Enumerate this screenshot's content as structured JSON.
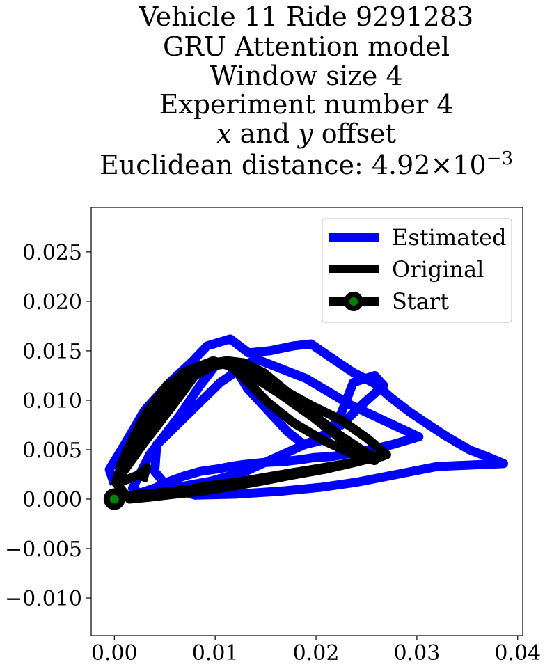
{
  "chart_data": {
    "type": "line",
    "title_lines": [
      "Vehicle 11 Ride 9291283",
      "GRU Attention model",
      "Window size 4",
      "Experiment number 4"
    ],
    "title_offset_var_x": "x",
    "title_offset_and": " and ",
    "title_offset_var_y": "y",
    "title_offset_rest": " offset",
    "title_distance_prefix": "Euclidean distance: 4.92×10",
    "title_distance_exponent": "−3",
    "xlim": [
      -0.0023,
      0.0405
    ],
    "ylim": [
      -0.0138,
      0.0295
    ],
    "xticks": [
      {
        "value": 0.0,
        "label": "0.00"
      },
      {
        "value": 0.01,
        "label": "0.01"
      },
      {
        "value": 0.02,
        "label": "0.02"
      },
      {
        "value": 0.03,
        "label": "0.03"
      },
      {
        "value": 0.04,
        "label": "0.04"
      }
    ],
    "yticks": [
      {
        "value": -0.01,
        "label": "−0.010"
      },
      {
        "value": -0.005,
        "label": "−0.005"
      },
      {
        "value": 0.0,
        "label": "0.000"
      },
      {
        "value": 0.005,
        "label": "0.005"
      },
      {
        "value": 0.01,
        "label": "0.010"
      },
      {
        "value": 0.015,
        "label": "0.015"
      },
      {
        "value": 0.02,
        "label": "0.020"
      },
      {
        "value": 0.025,
        "label": "0.025"
      }
    ],
    "grid": false,
    "legend_position": "top-right",
    "series": [
      {
        "name": "Estimated",
        "color": "#0000ff",
        "x": [
          0.0,
          -0.0005,
          0.001,
          0.003,
          0.0055,
          0.0078,
          0.0092,
          0.0115,
          0.0133,
          0.0154,
          0.0178,
          0.0195,
          0.0215,
          0.0237,
          0.0258,
          0.0275,
          0.0293,
          0.0312,
          0.033,
          0.0352,
          0.0372,
          0.0386,
          0.0365,
          0.032,
          0.028,
          0.024,
          0.0205,
          0.0165,
          0.012,
          0.008,
          0.0053,
          0.004,
          0.0042,
          0.0075,
          0.0105,
          0.014,
          0.019,
          0.0235,
          0.0283,
          0.0302,
          0.0275,
          0.0245,
          0.0215,
          0.0198,
          0.0185,
          0.0168,
          0.0148,
          0.0128,
          0.0115,
          0.0105,
          0.0085,
          0.0068,
          0.0052,
          0.0042,
          0.0025,
          0.0018,
          0.0035,
          0.0065,
          0.0085,
          0.0095,
          0.01,
          0.0112,
          0.012,
          0.0132,
          0.0152,
          0.0172,
          0.0188,
          0.0208,
          0.0225,
          0.0237,
          0.0258,
          0.0267,
          0.0245,
          0.0225,
          0.0195,
          0.016,
          0.013,
          0.0095,
          0.0068,
          0.0045,
          0.0025
        ],
        "y": [
          0.0015,
          0.003,
          0.0055,
          0.009,
          0.0118,
          0.014,
          0.0155,
          0.0162,
          0.0148,
          0.015,
          0.0155,
          0.0157,
          0.0143,
          0.0128,
          0.0117,
          0.0102,
          0.0088,
          0.0075,
          0.0063,
          0.005,
          0.0042,
          0.0036,
          0.0035,
          0.0033,
          0.0025,
          0.0017,
          0.0012,
          0.0008,
          0.0005,
          0.0004,
          0.0012,
          0.0028,
          0.0055,
          0.0088,
          0.0118,
          0.0142,
          0.0122,
          0.0095,
          0.0072,
          0.0063,
          0.0055,
          0.0048,
          0.0043,
          0.0042,
          0.004,
          0.0038,
          0.0037,
          0.0035,
          0.0033,
          0.0031,
          0.0028,
          0.0023,
          0.0017,
          0.0012,
          0.0006,
          0.0011,
          0.0045,
          0.0085,
          0.0115,
          0.0128,
          0.0135,
          0.014,
          0.0132,
          0.0112,
          0.009,
          0.0068,
          0.0055,
          0.006,
          0.0087,
          0.0118,
          0.0125,
          0.0115,
          0.0095,
          0.0075,
          0.0058,
          0.0042,
          0.0028,
          0.0018,
          0.0013,
          0.001,
          0.0006
        ]
      },
      {
        "name": "Original",
        "color": "#000000",
        "x": [
          0.0,
          0.0012,
          0.0025,
          0.004,
          0.0058,
          0.0075,
          0.009,
          0.0105,
          0.012,
          0.0138,
          0.0155,
          0.0178,
          0.0202,
          0.0225,
          0.025,
          0.0265,
          0.027,
          0.025,
          0.0225,
          0.0195,
          0.0165,
          0.0142,
          0.012,
          0.0098,
          0.0068,
          0.004,
          0.0022,
          0.001,
          0.0003,
          0.0007,
          0.0028,
          0.0058,
          0.0082,
          0.0098,
          0.0112,
          0.0128,
          0.0148,
          0.0172,
          0.0198,
          0.0223,
          0.0248,
          0.0258,
          0.0238,
          0.0208,
          0.0175,
          0.0145,
          0.0118,
          0.0088,
          0.006,
          0.0035,
          0.0015,
          0.0001,
          0.0012,
          0.003,
          0.0052,
          0.0078,
          0.0098,
          0.0107,
          0.0118,
          0.0135,
          0.0152,
          0.0178,
          0.021,
          0.0238,
          0.0258,
          0.0258,
          0.0232,
          0.0198,
          0.0162,
          0.0128,
          0.0098,
          0.0068,
          0.004,
          0.002,
          0.0005,
          0.0008,
          0.0025,
          0.0032,
          0.003,
          0.0028
        ],
        "y": [
          0.0,
          0.0003,
          0.0005,
          0.0006,
          0.0008,
          0.001,
          0.0013,
          0.0015,
          0.0017,
          0.002,
          0.0023,
          0.0027,
          0.0031,
          0.0035,
          0.004,
          0.0043,
          0.0045,
          0.0062,
          0.008,
          0.0095,
          0.0112,
          0.0128,
          0.0138,
          0.0135,
          0.0118,
          0.0082,
          0.0055,
          0.0035,
          0.002,
          0.0025,
          0.0055,
          0.0095,
          0.0128,
          0.0138,
          0.014,
          0.0138,
          0.0128,
          0.0108,
          0.0085,
          0.0065,
          0.0048,
          0.0042,
          0.0037,
          0.003,
          0.0024,
          0.0018,
          0.0013,
          0.0008,
          0.0005,
          0.0002,
          0.0,
          0.0017,
          0.0048,
          0.0085,
          0.0115,
          0.0132,
          0.0138,
          0.0138,
          0.0132,
          0.0116,
          0.0098,
          0.0077,
          0.0058,
          0.0045,
          0.0039,
          0.0043,
          0.0055,
          0.0082,
          0.0108,
          0.013,
          0.014,
          0.0128,
          0.0095,
          0.0065,
          0.0032,
          0.0018,
          0.0025,
          0.0032,
          0.0025,
          0.0018
        ]
      }
    ],
    "start": {
      "name": "Start",
      "x": 0.0,
      "y": 0.0,
      "marker_face": "#008000",
      "marker_edge": "#000000",
      "line_color": "#000000"
    }
  }
}
